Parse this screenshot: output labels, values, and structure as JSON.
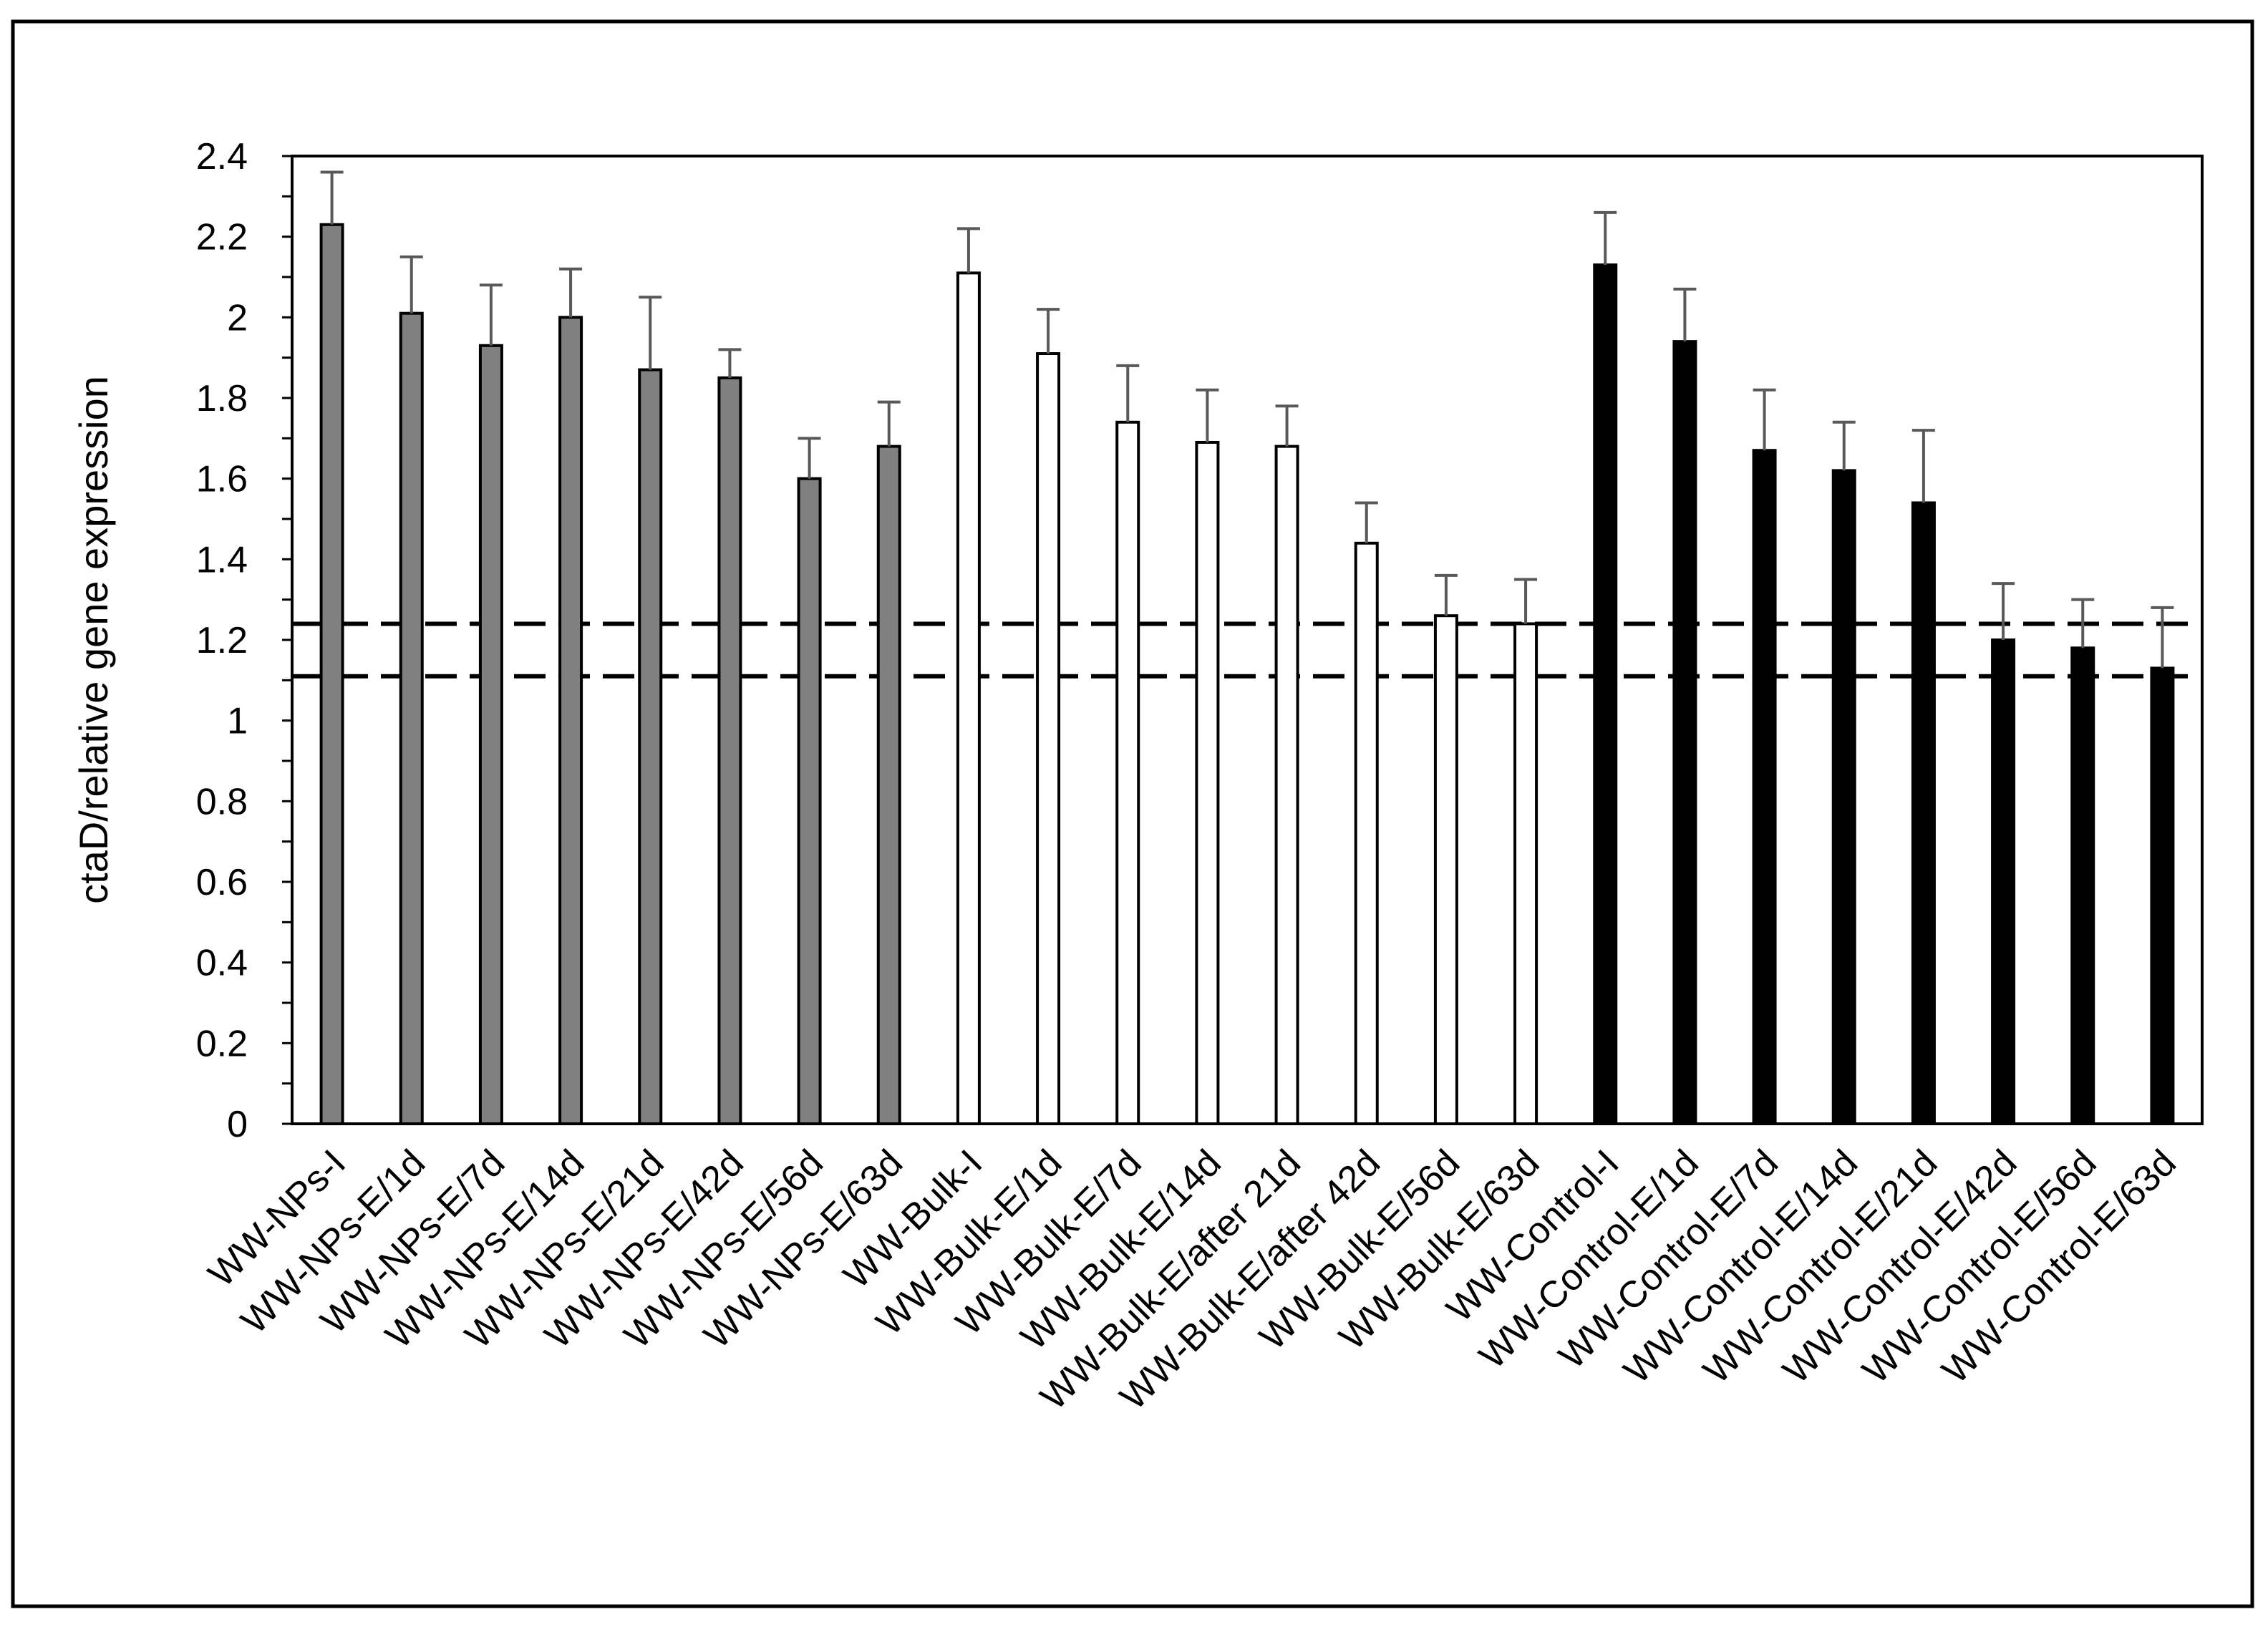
{
  "chart_data": {
    "type": "bar",
    "ylabel": "ctaD/relative gene expression",
    "xlabel": "",
    "ylim": [
      0,
      2.4
    ],
    "yticks": [
      0,
      0.2,
      0.4,
      0.6,
      0.8,
      1,
      1.2,
      1.4,
      1.6,
      1.8,
      2,
      2.2,
      2.4
    ],
    "grid": false,
    "categories": [
      "WW-NPs-I",
      "WW-NPs-E/1d",
      "WW-NPs-E/7d",
      "WW-NPs-E/14d",
      "WW-NPs-E/21d",
      "WW-NPs-E/42d",
      "WW-NPs-E/56d",
      "WW-NPs-E/63d",
      "WW-Bulk-I",
      "WW-Bulk-E/1d",
      "WW-Bulk-E/7d",
      "WW-Bulk-E/14d",
      "WW-Bulk-E/after 21d",
      "WW-Bulk-E/after 42d",
      "WW-Bulk-E/56d",
      "WW-Bulk-E/63d",
      "WW-Control-I",
      "WW-Control-E/1d",
      "WW-Control-E/7d",
      "WW-Control-E/14d",
      "WW-Control-E/21d",
      "WW-Control-E/42d",
      "WW-Control-E/56d",
      "WW-Control-E/63d"
    ],
    "values": [
      2.23,
      2.01,
      1.93,
      2.0,
      1.87,
      1.85,
      1.6,
      1.68,
      2.11,
      1.91,
      1.74,
      1.69,
      1.68,
      1.44,
      1.26,
      1.24,
      2.13,
      1.94,
      1.67,
      1.62,
      1.54,
      1.2,
      1.18,
      1.13
    ],
    "errors": [
      0.13,
      0.14,
      0.15,
      0.12,
      0.18,
      0.07,
      0.1,
      0.11,
      0.11,
      0.11,
      0.14,
      0.13,
      0.1,
      0.1,
      0.1,
      0.11,
      0.13,
      0.13,
      0.15,
      0.12,
      0.18,
      0.14,
      0.12,
      0.15
    ],
    "bar_colors": [
      "#808080",
      "#808080",
      "#808080",
      "#808080",
      "#808080",
      "#808080",
      "#808080",
      "#808080",
      "#ffffff",
      "#ffffff",
      "#ffffff",
      "#ffffff",
      "#ffffff",
      "#ffffff",
      "#ffffff",
      "#ffffff",
      "#000000",
      "#000000",
      "#000000",
      "#000000",
      "#000000",
      "#000000",
      "#000000",
      "#000000"
    ],
    "error_bar_color": "#595959",
    "reference_lines": [
      {
        "y": 1.24,
        "style": "dashed"
      },
      {
        "y": 1.11,
        "style": "dashed"
      }
    ]
  }
}
